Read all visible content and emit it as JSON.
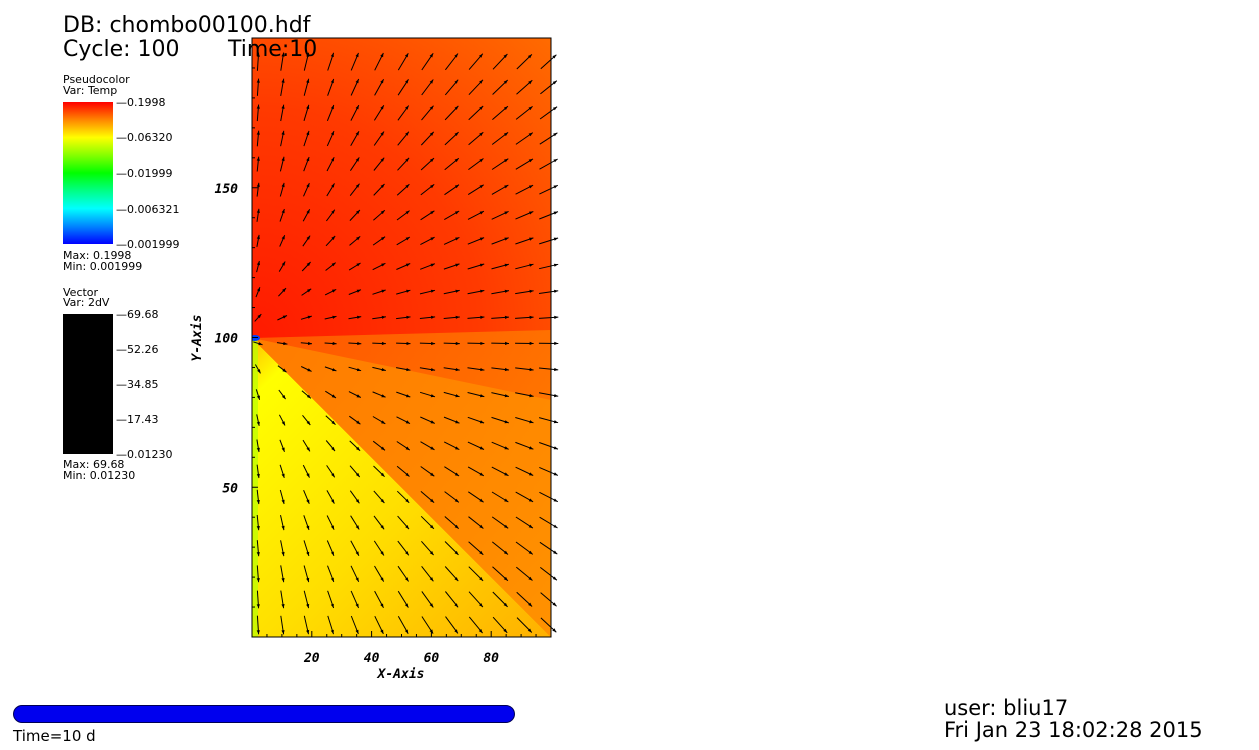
{
  "header": {
    "db": "DB: chombo00100.hdf",
    "cycle": "Cycle: 100",
    "time": "Time:10"
  },
  "pseudocolor_legend": {
    "title": "Pseudocolor",
    "var": "Var: Temp",
    "ticks": [
      "0.1998",
      "0.06320",
      "0.01999",
      "0.006321",
      "0.001999"
    ],
    "max": "Max: 0.1998",
    "min": "Min: 0.001999",
    "colors": [
      "#ff0000",
      "#ffff00",
      "#00ff00",
      "#00ffff",
      "#0000ff"
    ]
  },
  "vector_legend": {
    "title": "Vector",
    "var": "Var: 2dV",
    "ticks": [
      "69.68",
      "52.26",
      "34.85",
      "17.43",
      "0.01230"
    ],
    "max": "Max: 69.68",
    "min": "Min: 0.01230",
    "color": "#000000"
  },
  "chart_data": {
    "type": "heatmap",
    "title": "",
    "xlabel": "X-Axis",
    "ylabel": "Y-Axis",
    "xlim": [
      0,
      100
    ],
    "ylim": [
      0,
      200
    ],
    "x_ticks": [
      20,
      40,
      60,
      80
    ],
    "y_ticks": [
      50,
      100,
      150
    ],
    "field": "Temp",
    "vector_field": "2dV",
    "source_point": [
      0,
      100
    ],
    "colormap": [
      "#0000ff",
      "#00ffff",
      "#00ff00",
      "#ffff00",
      "#ff0000"
    ],
    "upper_color": "#ff2a00",
    "lower_color": "#ffff00",
    "far_color": "#ff6a00"
  },
  "time_slider": {
    "caption": "Time=10 d",
    "color": "#0000ee"
  },
  "footer": {
    "user": "user: bliu17",
    "date": "Fri Jan 23 18:02:28 2015"
  }
}
